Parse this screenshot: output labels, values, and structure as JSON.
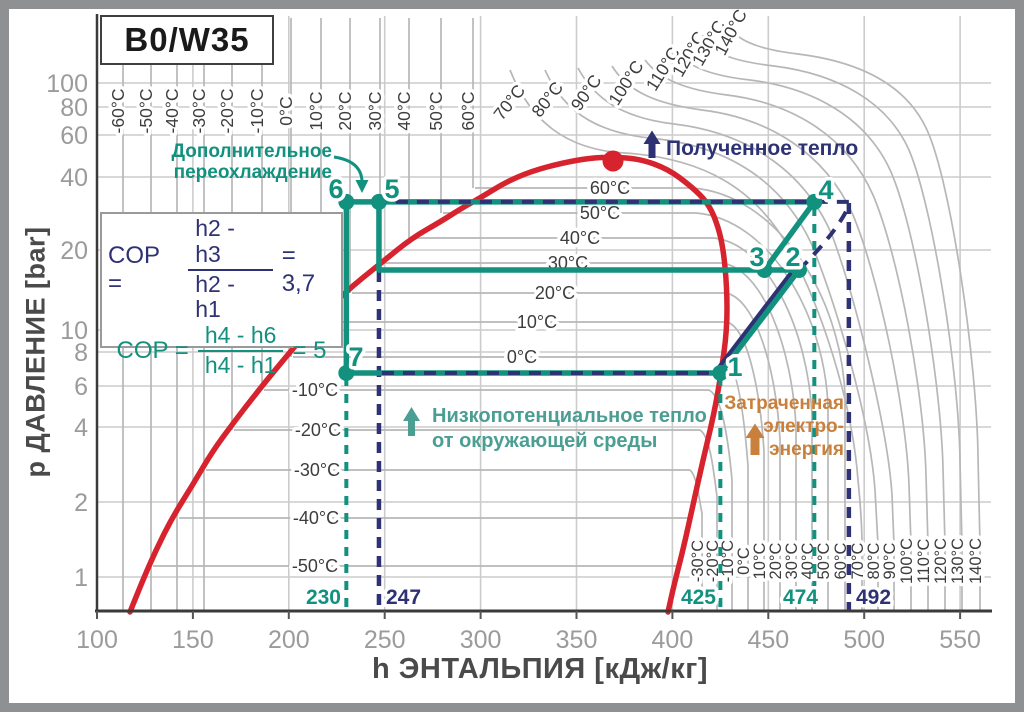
{
  "title": "B0/W35",
  "colors": {
    "teal": "#12917f",
    "navy": "#2e3274",
    "red": "#d7232e",
    "orange": "#c8803c",
    "grid": "#cccccc",
    "isotherm": "#b7b7b7",
    "axis_text": "#9b9b9b",
    "temp_text": "#3d3d3d"
  },
  "chart_data": {
    "type": "line",
    "title": "B0/W35",
    "xlabel": "h ЭНТАЛЬПИЯ [кДж/кг]",
    "ylabel": "р ДАВЛЕНИЕ [bar]",
    "x_ticks": [
      100,
      150,
      200,
      250,
      300,
      350,
      400,
      450,
      500,
      550
    ],
    "y_ticks": [
      100,
      80,
      60,
      40,
      20,
      10,
      8,
      6,
      4,
      2,
      1
    ],
    "y_axis_log": true,
    "xlim": [
      100,
      565
    ],
    "ylim": [
      0.73,
      115
    ],
    "isotherms_top_c": [
      "-60°C",
      "-50°C",
      "-40°C",
      "-30°C",
      "-20°C",
      "-10°C",
      "0°C",
      "10°C",
      "20°C",
      "30°C",
      "40°C",
      "50°C",
      "60°C"
    ],
    "isotherms_supercritical_c": [
      "70°C",
      "80°C",
      "90°C",
      "100°C",
      "110°C",
      "120°C",
      "130°C",
      "140°C"
    ],
    "isotherms_inside_c": [
      "-50°C",
      "-40°C",
      "-30°C",
      "-20°C",
      "-10°C",
      "0°C",
      "10°C",
      "20°C",
      "30°C",
      "40°C",
      "50°C",
      "60°C"
    ],
    "isotherms_bottom_c": [
      "-30°C",
      "-20°C",
      "-10°C",
      "0°C",
      "10°C",
      "20°C",
      "30°C",
      "40°C",
      "50°C",
      "60°C",
      "70°C",
      "80°C",
      "90°C",
      "100°C",
      "110°C",
      "120°C",
      "130°C",
      "140°C"
    ],
    "cycle_points": [
      {
        "label": "1",
        "h_kj_kg": 425,
        "p_bar": 6.7
      },
      {
        "label": "2",
        "h_kj_kg": 466,
        "p_bar": 17.5
      },
      {
        "label": "3",
        "h_kj_kg": 448,
        "p_bar": 17.5
      },
      {
        "label": "4",
        "h_kj_kg": 474,
        "p_bar": 33
      },
      {
        "label": "5",
        "h_kj_kg": 247,
        "p_bar": 33
      },
      {
        "label": "6",
        "h_kj_kg": 230,
        "p_bar": 33
      },
      {
        "label": "7",
        "h_kj_kg": 230,
        "p_bar": 6.7
      }
    ],
    "enthalpy_markers": [
      {
        "value": "230",
        "color": "teal"
      },
      {
        "value": "247",
        "color": "navy"
      },
      {
        "value": "425",
        "color": "teal"
      },
      {
        "value": "474",
        "color": "teal"
      },
      {
        "value": "492",
        "color": "navy"
      }
    ]
  },
  "cop": [
    {
      "prefix": "COP =",
      "num": "h2 - h3",
      "den": "h2 - h1",
      "result": "= 3,7",
      "theme": "navy"
    },
    {
      "prefix": "COP =",
      "num": "h4 - h6",
      "den": "h4 - h1",
      "result": "= 5",
      "theme": "teal"
    }
  ],
  "annotations": {
    "subcooling": {
      "line1": "Дополнительное",
      "line2": "переохлаждение"
    },
    "received_heat": {
      "text": "Полученное тепло"
    },
    "low_grade_heat": {
      "line1": "Низкопотенциальное тепло",
      "line2": "от окружающей среды"
    },
    "electric_energy": {
      "line1": "Затраченная",
      "line2": "электро-",
      "line3": "энергия"
    }
  }
}
